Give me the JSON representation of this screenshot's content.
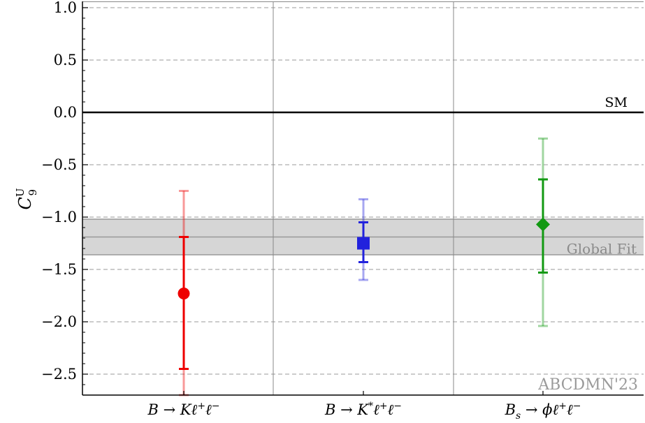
{
  "chart_data": {
    "type": "scatter",
    "ylabel": {
      "symbol": "C",
      "superscript": "U",
      "subscript": "9"
    },
    "ylim": [
      -2.7,
      1.06
    ],
    "yticks": [
      "1.0",
      "0.5",
      "0.0",
      "−0.5",
      "−1.0",
      "−1.5",
      "−2.0",
      "−2.5"
    ],
    "ytick_values": [
      1.0,
      0.5,
      0.0,
      -0.5,
      -1.0,
      -1.5,
      -2.0,
      -2.5
    ],
    "grid_y": "dashed",
    "categories": [
      {
        "text": "B → Kℓ⁺ℓ⁻"
      },
      {
        "text": "B → K*ℓ⁺ℓ⁻"
      },
      {
        "text": "Bₛ → ϕℓ⁺ℓ⁻"
      }
    ],
    "points": [
      {
        "category": 0,
        "value": -1.73,
        "err_inner": [
          -2.45,
          -1.19
        ],
        "err_outer": [
          -2.7,
          -0.75
        ],
        "color": "#ee0000",
        "marker": "circle"
      },
      {
        "category": 1,
        "value": -1.25,
        "err_inner": [
          -1.43,
          -1.05
        ],
        "err_outer": [
          -1.6,
          -0.83
        ],
        "color": "#2222dd",
        "marker": "square"
      },
      {
        "category": 2,
        "value": -1.07,
        "err_inner": [
          -1.53,
          -0.64
        ],
        "err_outer": [
          -2.04,
          -0.25
        ],
        "color": "#129912",
        "marker": "diamond"
      }
    ],
    "sm_line": {
      "value": 0.0,
      "label": "SM"
    },
    "global_fit": {
      "central": -1.19,
      "band": [
        -1.36,
        -1.02
      ],
      "label": "Global Fit",
      "color": "#999999"
    },
    "watermark": "ABCDMN'23"
  }
}
